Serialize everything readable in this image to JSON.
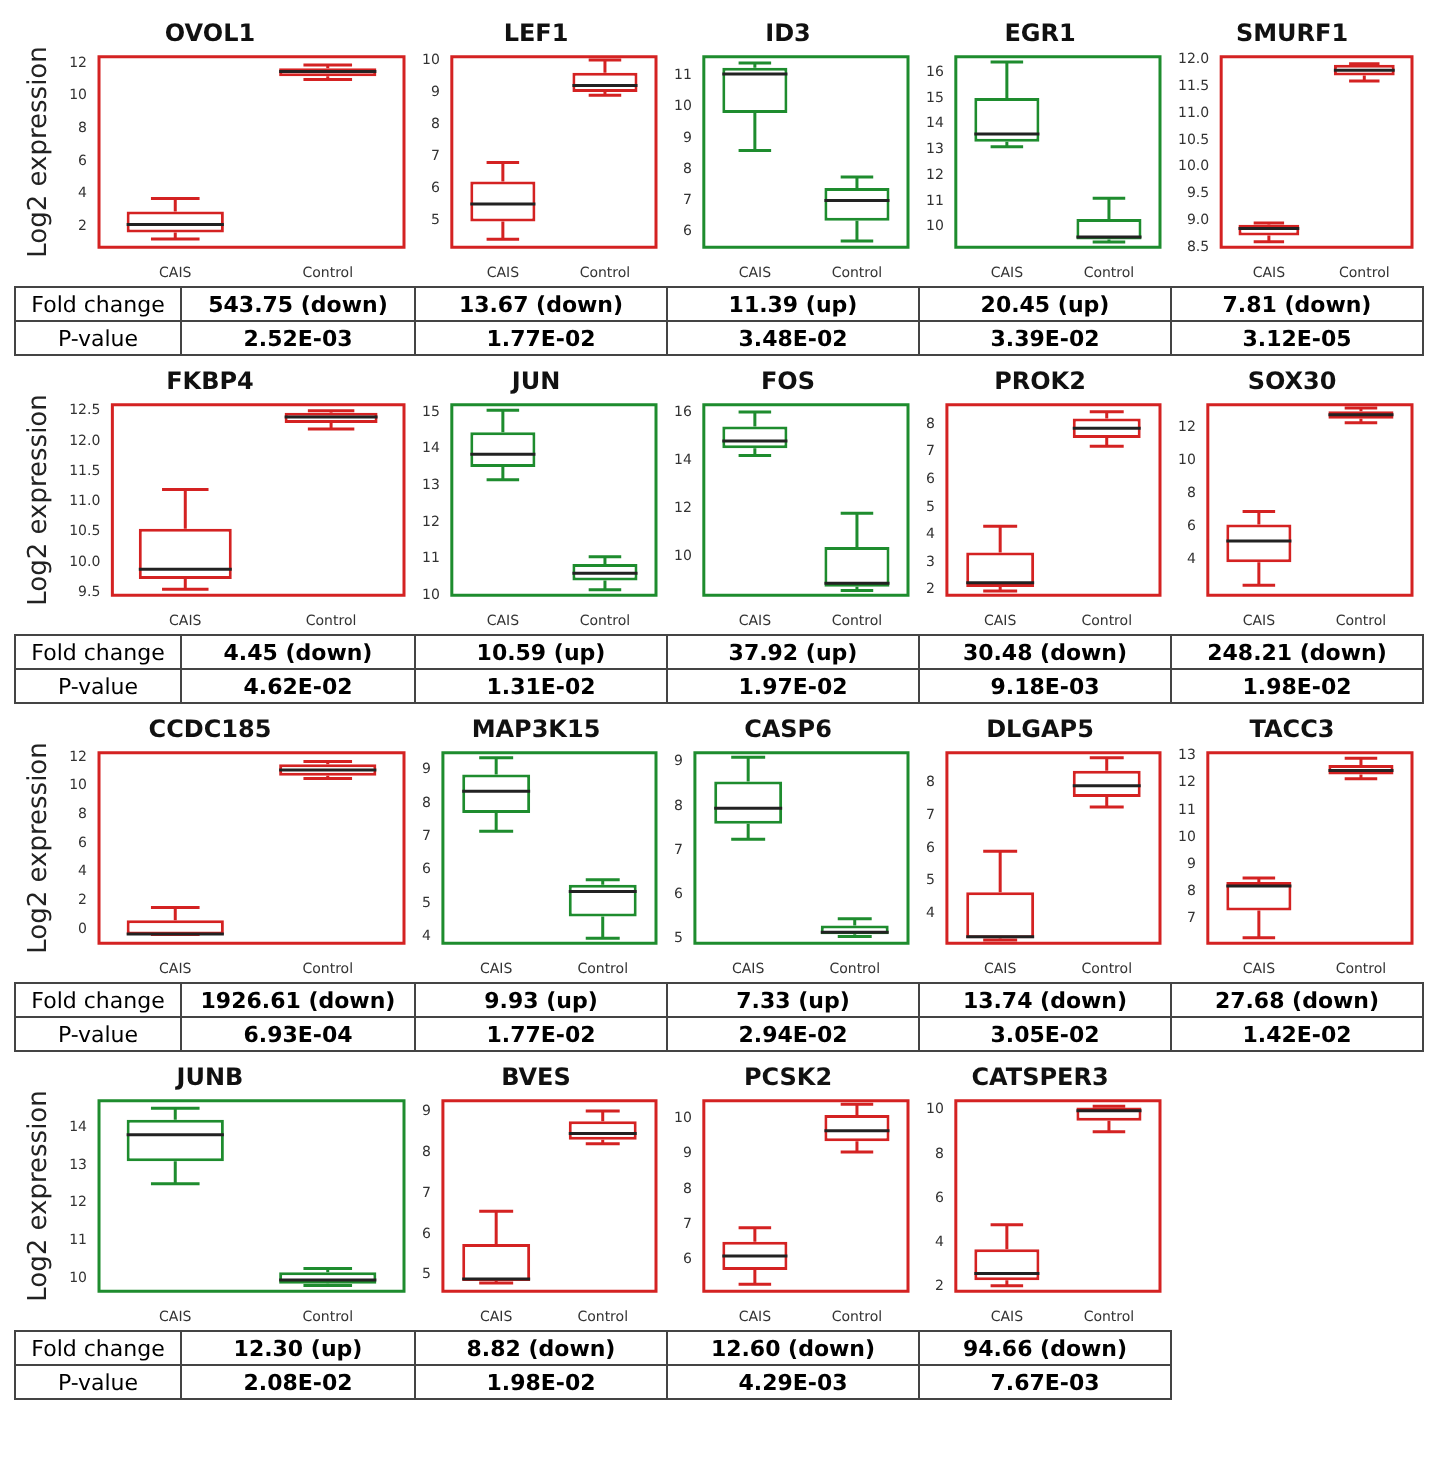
{
  "chart_data": [
    {
      "type": "box",
      "title": "OVOL1",
      "ylabel": "Log2 expression",
      "categories": [
        "CAIS",
        "Control"
      ],
      "series": [
        {
          "color": "#d42222",
          "boxes": [
            {
              "low": 1.2,
              "q1": 1.6,
              "median": 2.1,
              "q3": 2.9,
              "high": 3.7
            },
            {
              "low": 11.0,
              "q1": 11.2,
              "median": 11.5,
              "q3": 11.7,
              "high": 11.9
            }
          ]
        }
      ],
      "ylim": [
        0.7,
        12.4
      ],
      "yticks": [
        2,
        4,
        6,
        8,
        10,
        12
      ],
      "annotations": [
        "Fold change",
        "P-value",
        "543.75 (down)",
        "2.52E-03"
      ]
    },
    {
      "type": "box",
      "title": "LEF1",
      "categories": [
        "CAIS",
        "Control"
      ],
      "series": [
        {
          "color": "#d42222",
          "boxes": [
            {
              "low": 4.4,
              "q1": 4.95,
              "median": 5.5,
              "q3": 6.2,
              "high": 6.8
            },
            {
              "low": 8.9,
              "q1": 9.0,
              "median": 9.2,
              "q3": 9.6,
              "high": 10.0
            }
          ]
        }
      ],
      "ylim": [
        4.15,
        10.1
      ],
      "yticks": [
        5,
        6,
        7,
        8,
        9,
        10
      ],
      "annotations": [
        "13.67 (down)",
        "1.77E-02"
      ]
    },
    {
      "type": "box",
      "title": "ID3",
      "categories": [
        "CAIS",
        "Control"
      ],
      "series": [
        {
          "color": "#1e8c2e",
          "boxes": [
            {
              "low": 8.6,
              "q1": 9.8,
              "median": 11.05,
              "q3": 11.25,
              "high": 11.4
            },
            {
              "low": 5.7,
              "q1": 6.35,
              "median": 7.0,
              "q3": 7.4,
              "high": 7.75
            }
          ]
        }
      ],
      "ylim": [
        5.5,
        11.6
      ],
      "yticks": [
        6,
        7,
        8,
        9,
        10,
        11
      ],
      "annotations": [
        "11.39 (up)",
        "3.48E-02"
      ]
    },
    {
      "type": "box",
      "title": "EGR1",
      "categories": [
        "CAIS",
        "Control"
      ],
      "series": [
        {
          "color": "#1e8c2e",
          "boxes": [
            {
              "low": 13.1,
              "q1": 13.3,
              "median": 13.6,
              "q3": 15.0,
              "high": 16.4
            },
            {
              "low": 9.4,
              "q1": 9.5,
              "median": 9.6,
              "q3": 10.3,
              "high": 11.1
            }
          ]
        }
      ],
      "ylim": [
        9.2,
        16.6
      ],
      "yticks": [
        10,
        11,
        12,
        13,
        14,
        15,
        16
      ],
      "annotations": [
        "20.45 (up)",
        "3.39E-02"
      ]
    },
    {
      "type": "box",
      "title": "SMURF1",
      "categories": [
        "CAIS",
        "Control"
      ],
      "series": [
        {
          "color": "#d42222",
          "boxes": [
            {
              "low": 8.6,
              "q1": 8.72,
              "median": 8.85,
              "q3": 8.92,
              "high": 8.95
            },
            {
              "low": 11.6,
              "q1": 11.7,
              "median": 11.8,
              "q3": 11.9,
              "high": 11.92
            }
          ]
        }
      ],
      "ylim": [
        8.5,
        12.05
      ],
      "yticks": [
        {
          "value": 8.5,
          "label": "8.5"
        },
        {
          "value": 9,
          "label": "9.0"
        },
        {
          "value": 9.5,
          "label": "9.5"
        },
        {
          "value": 10,
          "label": "10.0"
        },
        {
          "value": 10.5,
          "label": "10.5"
        },
        {
          "value": 11,
          "label": "11.0"
        },
        {
          "value": 11.5,
          "label": "11.5"
        },
        {
          "value": 12,
          "label": "12.0"
        }
      ],
      "annotations": [
        "7.81 (down)",
        "3.12E-05"
      ]
    },
    {
      "type": "box",
      "title": "FKBP4",
      "ylabel": "Log2 expression",
      "categories": [
        "CAIS",
        "Control"
      ],
      "series": [
        {
          "color": "#d42222",
          "boxes": [
            {
              "low": 9.55,
              "q1": 9.72,
              "median": 9.88,
              "q3": 10.55,
              "high": 11.2
            },
            {
              "low": 12.2,
              "q1": 12.3,
              "median": 12.4,
              "q3": 12.47,
              "high": 12.5
            }
          ]
        }
      ],
      "ylim": [
        9.45,
        12.6
      ],
      "yticks": [
        {
          "value": 9.5,
          "label": "9.5"
        },
        {
          "value": 10,
          "label": "10.0"
        },
        {
          "value": 10.5,
          "label": "10.5"
        },
        {
          "value": 11,
          "label": "11.0"
        },
        {
          "value": 11.5,
          "label": "11.5"
        },
        {
          "value": 12,
          "label": "12.0"
        },
        {
          "value": 12.5,
          "label": "12.5"
        }
      ],
      "annotations": [
        "Fold change",
        "P-value",
        "4.45 (down)",
        "4.62E-02"
      ]
    },
    {
      "type": "box",
      "title": "JUN",
      "categories": [
        "CAIS",
        "Control"
      ],
      "series": [
        {
          "color": "#1e8c2e",
          "boxes": [
            {
              "low": 13.15,
              "q1": 13.5,
              "median": 13.85,
              "q3": 14.45,
              "high": 15.05
            },
            {
              "low": 10.15,
              "q1": 10.4,
              "median": 10.6,
              "q3": 10.85,
              "high": 11.05
            }
          ]
        }
      ],
      "ylim": [
        10,
        15.2
      ],
      "yticks": [
        10,
        11,
        12,
        13,
        14,
        15
      ],
      "annotations": [
        "10.59 (up)",
        "1.31E-02"
      ]
    },
    {
      "type": "box",
      "title": "FOS",
      "categories": [
        "CAIS",
        "Control"
      ],
      "series": [
        {
          "color": "#1e8c2e",
          "boxes": [
            {
              "low": 14.2,
              "q1": 14.5,
              "median": 14.8,
              "q3": 15.4,
              "high": 16.0
            },
            {
              "low": 8.6,
              "q1": 8.75,
              "median": 8.9,
              "q3": 10.4,
              "high": 11.8
            }
          ]
        }
      ],
      "ylim": [
        8.4,
        16.3
      ],
      "yticks": [
        10,
        12,
        14,
        16
      ],
      "annotations": [
        "37.92 (up)",
        "1.97E-02"
      ]
    },
    {
      "type": "box",
      "title": "PROK2",
      "categories": [
        "CAIS",
        "Control"
      ],
      "series": [
        {
          "color": "#d42222",
          "boxes": [
            {
              "low": 1.95,
              "q1": 2.1,
              "median": 2.25,
              "q3": 3.35,
              "high": 4.3
            },
            {
              "low": 7.2,
              "q1": 7.5,
              "median": 7.85,
              "q3": 8.2,
              "high": 8.45
            }
          ]
        }
      ],
      "ylim": [
        1.8,
        8.7
      ],
      "yticks": [
        2,
        3,
        4,
        5,
        6,
        7,
        8
      ],
      "annotations": [
        "30.48 (down)",
        "9.18E-03"
      ]
    },
    {
      "type": "box",
      "title": "SOX30",
      "categories": [
        "CAIS",
        "Control"
      ],
      "series": [
        {
          "color": "#d42222",
          "boxes": [
            {
              "low": 2.4,
              "q1": 3.8,
              "median": 5.1,
              "q3": 6.1,
              "high": 6.9
            },
            {
              "low": 12.3,
              "q1": 12.55,
              "median": 12.8,
              "q3": 13.0,
              "high": 13.2
            }
          ]
        }
      ],
      "ylim": [
        1.8,
        13.4
      ],
      "yticks": [
        4,
        6,
        8,
        10,
        12
      ],
      "annotations": [
        "248.21 (down)",
        "1.98E-02"
      ]
    },
    {
      "type": "box",
      "title": "CCDC185",
      "ylabel": "Log2 expression",
      "categories": [
        "CAIS",
        "Control"
      ],
      "series": [
        {
          "color": "#d42222",
          "boxes": [
            {
              "low": -0.4,
              "q1": -0.4,
              "median": -0.35,
              "q3": 0.6,
              "high": 1.5
            },
            {
              "low": 10.5,
              "q1": 10.7,
              "median": 11.1,
              "q3": 11.5,
              "high": 11.7
            }
          ]
        }
      ],
      "ylim": [
        -1,
        12.3
      ],
      "yticks": [
        0,
        2,
        4,
        6,
        8,
        10,
        12
      ],
      "annotations": [
        "Fold change",
        "P-value",
        "1926.61 (down)",
        "6.93E-04"
      ]
    },
    {
      "type": "box",
      "title": "MAP3K15",
      "categories": [
        "CAIS",
        "Control"
      ],
      "series": [
        {
          "color": "#1e8c2e",
          "boxes": [
            {
              "low": 7.15,
              "q1": 7.7,
              "median": 8.35,
              "q3": 8.85,
              "high": 9.35
            },
            {
              "low": 3.95,
              "q1": 4.6,
              "median": 5.35,
              "q3": 5.55,
              "high": 5.7
            }
          ]
        }
      ],
      "ylim": [
        3.8,
        9.5
      ],
      "yticks": [
        4,
        5,
        6,
        7,
        8,
        9
      ],
      "annotations": [
        "9.93 (up)",
        "1.77E-02"
      ]
    },
    {
      "type": "box",
      "title": "CASP6",
      "categories": [
        "CAIS",
        "Control"
      ],
      "series": [
        {
          "color": "#1e8c2e",
          "boxes": [
            {
              "low": 7.25,
              "q1": 7.6,
              "median": 7.95,
              "q3": 8.55,
              "high": 9.1
            },
            {
              "low": 5.05,
              "q1": 5.1,
              "median": 5.15,
              "q3": 5.3,
              "high": 5.45
            }
          ]
        }
      ],
      "ylim": [
        4.9,
        9.2
      ],
      "yticks": [
        5,
        6,
        7,
        8,
        9
      ],
      "annotations": [
        "7.33 (up)",
        "2.94E-02"
      ]
    },
    {
      "type": "box",
      "title": "DLGAP5",
      "categories": [
        "CAIS",
        "Control"
      ],
      "series": [
        {
          "color": "#d42222",
          "boxes": [
            {
              "low": 3.2,
              "q1": 3.25,
              "median": 3.3,
              "q3": 4.65,
              "high": 5.9
            },
            {
              "low": 7.25,
              "q1": 7.55,
              "median": 7.9,
              "q3": 8.35,
              "high": 8.75
            }
          ]
        }
      ],
      "ylim": [
        3.1,
        8.9
      ],
      "yticks": [
        4,
        5,
        6,
        7,
        8
      ],
      "annotations": [
        "13.74 (down)",
        "3.05E-02"
      ]
    },
    {
      "type": "box",
      "title": "TACC3",
      "categories": [
        "CAIS",
        "Control"
      ],
      "series": [
        {
          "color": "#d42222",
          "boxes": [
            {
              "low": 6.3,
              "q1": 7.3,
              "median": 8.2,
              "q3": 8.35,
              "high": 8.5
            },
            {
              "low": 12.15,
              "q1": 12.3,
              "median": 12.45,
              "q3": 12.65,
              "high": 12.9
            }
          ]
        }
      ],
      "ylim": [
        6.1,
        13.1
      ],
      "yticks": [
        7,
        8,
        9,
        10,
        11,
        12,
        13
      ],
      "annotations": [
        "27.68 (down)",
        "1.42E-02"
      ]
    },
    {
      "type": "box",
      "title": "JUNB",
      "ylabel": "Log2 expression",
      "categories": [
        "CAIS",
        "Control"
      ],
      "series": [
        {
          "color": "#1e8c2e",
          "boxes": [
            {
              "low": 12.5,
              "q1": 13.1,
              "median": 13.8,
              "q3": 14.2,
              "high": 14.5
            },
            {
              "low": 9.8,
              "q1": 9.85,
              "median": 9.95,
              "q3": 10.15,
              "high": 10.25
            }
          ]
        }
      ],
      "ylim": [
        9.65,
        14.7
      ],
      "yticks": [
        10,
        11,
        12,
        13,
        14
      ],
      "annotations": [
        "Fold change",
        "P-value",
        "12.30 (up)",
        "2.08E-02"
      ]
    },
    {
      "type": "box",
      "title": "BVES",
      "categories": [
        "CAIS",
        "Control"
      ],
      "series": [
        {
          "color": "#d42222",
          "boxes": [
            {
              "low": 4.8,
              "q1": 4.85,
              "median": 4.9,
              "q3": 5.75,
              "high": 6.55
            },
            {
              "low": 8.2,
              "q1": 8.3,
              "median": 8.45,
              "q3": 8.75,
              "high": 9.0
            }
          ]
        }
      ],
      "ylim": [
        4.6,
        9.25
      ],
      "yticks": [
        5,
        6,
        7,
        8,
        9
      ],
      "annotations": [
        "8.82 (down)",
        "1.98E-02"
      ]
    },
    {
      "type": "box",
      "title": "PCSK2",
      "categories": [
        "CAIS",
        "Control"
      ],
      "series": [
        {
          "color": "#d42222",
          "boxes": [
            {
              "low": 5.3,
              "q1": 5.7,
              "median": 6.1,
              "q3": 6.5,
              "high": 6.9
            },
            {
              "low": 9.05,
              "q1": 9.35,
              "median": 9.65,
              "q3": 10.1,
              "high": 10.4
            }
          ]
        }
      ],
      "ylim": [
        5.1,
        10.5
      ],
      "yticks": [
        6,
        7,
        8,
        9,
        10
      ],
      "annotations": [
        "12.60 (down)",
        "4.29E-03"
      ]
    },
    {
      "type": "box",
      "title": "CATSPER3",
      "categories": [
        "CAIS",
        "Control"
      ],
      "series": [
        {
          "color": "#d42222",
          "boxes": [
            {
              "low": 2.05,
              "q1": 2.3,
              "median": 2.6,
              "q3": 3.7,
              "high": 4.8
            },
            {
              "low": 9.0,
              "q1": 9.5,
              "median": 9.95,
              "q3": 10.1,
              "high": 10.15
            }
          ]
        }
      ],
      "ylim": [
        1.8,
        10.4
      ],
      "yticks": [
        2,
        4,
        6,
        8,
        10
      ],
      "annotations": [
        "94.66 (down)",
        "7.67E-03"
      ]
    }
  ]
}
